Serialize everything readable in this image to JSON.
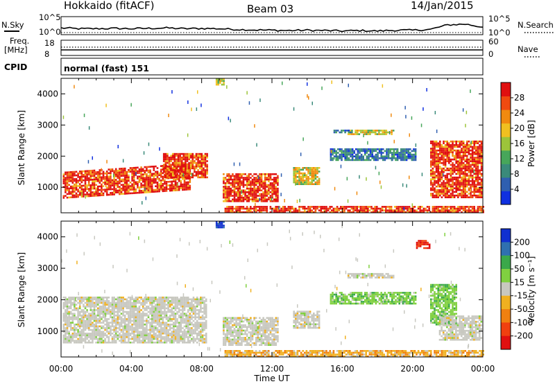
{
  "header": {
    "radar": "Hokkaido (fitACF)",
    "beam": "Beam 03",
    "date": "14/Jan/2015"
  },
  "top_labels": {
    "noise_sky": "N.Sky",
    "noise_search": "N.Search",
    "freq": "Freq.",
    "freq_unit": "[MHz]",
    "nave": "Nave",
    "cpid": "CPID",
    "cpid_value": "normal (fast) 151"
  },
  "chart_data": [
    {
      "type": "line",
      "name_on_figure": "N.Sky",
      "ylim_labels": [
        "10^5",
        "10^0"
      ],
      "right_labels": [
        "10^5",
        "10^0"
      ],
      "series": [
        {
          "name": "N.Sky",
          "style": "solid",
          "x_hours": [
            0,
            1,
            2,
            3,
            4,
            5,
            6,
            7,
            8,
            9,
            10,
            11,
            12,
            13,
            14,
            15,
            16,
            17,
            18,
            19,
            20,
            21,
            22,
            23,
            24
          ],
          "values_fraction_of_panel": [
            0.35,
            0.3,
            0.3,
            0.32,
            0.3,
            0.32,
            0.35,
            0.3,
            0.32,
            0.3,
            0.25,
            0.22,
            0.2,
            0.18,
            0.2,
            0.18,
            0.15,
            0.18,
            0.15,
            0.2,
            0.2,
            0.25,
            0.55,
            0.6,
            0.4
          ]
        },
        {
          "name": "N.Search",
          "style": "dotted",
          "x_hours": [
            0,
            24
          ],
          "values_fraction_of_panel": [
            0.05,
            0.05
          ]
        }
      ]
    },
    {
      "type": "line",
      "name_on_figure": "Freq. [MHz] / Nave",
      "left_ticks": [
        "18",
        "8"
      ],
      "right_ticks": [
        "60",
        "0"
      ],
      "series": [
        {
          "name": "Freq",
          "style": "solid",
          "x_hours": [
            0,
            24
          ],
          "value_mhz": [
            10.4,
            10.4
          ]
        },
        {
          "name": "Nave",
          "style": "dotted",
          "x_hours": [
            0,
            24
          ],
          "value": [
            24,
            24
          ]
        }
      ]
    },
    {
      "type": "heatmap",
      "parameter": "Power",
      "ylabel": "Slant Range [km]",
      "xlabel": "Time UT",
      "xlim_hours": [
        0,
        24
      ],
      "ylim_km": [
        180,
        4500
      ],
      "x_tick_labels": [
        "00:00",
        "04:00",
        "08:00",
        "12:00",
        "16:00",
        "20:00",
        "00:00"
      ],
      "y_tick_values": [
        1000,
        2000,
        3000,
        4000
      ],
      "colorbar": {
        "label": "Power [dB]",
        "ticks": [
          "4",
          "8",
          "12",
          "16",
          "20",
          "24",
          "28"
        ],
        "colors": [
          "#1030e0",
          "#2f5fb0",
          "#3a8a7a",
          "#47a65a",
          "#9cc43a",
          "#f0c020",
          "#f08a10",
          "#f04a10",
          "#e01010"
        ],
        "min": 0,
        "max": 30
      },
      "scatter_regions": [
        {
          "t0": 0.1,
          "t1": 7.3,
          "r0": 650,
          "r1": 1500,
          "power": "high",
          "slope_km_per_h": 95
        },
        {
          "t0": 5.8,
          "t1": 8.3,
          "r0": 1300,
          "r1": 2100,
          "power": "high"
        },
        {
          "t0": 9.2,
          "t1": 12.3,
          "r0": 550,
          "r1": 1450,
          "power": "high"
        },
        {
          "t0": 13.2,
          "t1": 14.7,
          "r0": 1100,
          "r1": 1650,
          "power": "medium"
        },
        {
          "t0": 15.3,
          "t1": 20.2,
          "r0": 1850,
          "r1": 2250,
          "power": "low"
        },
        {
          "t0": 16.3,
          "t1": 18.9,
          "r0": 2700,
          "r1": 2850,
          "power": "medium"
        },
        {
          "t0": 15.5,
          "t1": 16.5,
          "r0": 2750,
          "r1": 2850,
          "power": "low"
        },
        {
          "t0": 21.0,
          "t1": 23.9,
          "r0": 700,
          "r1": 2500,
          "power": "high"
        },
        {
          "t0": 9.3,
          "t1": 24,
          "r0": 200,
          "r1": 400,
          "power": "high"
        },
        {
          "t0": 8.8,
          "t1": 9.3,
          "r0": 4300,
          "r1": 4500,
          "power": "medium"
        }
      ]
    },
    {
      "type": "heatmap",
      "parameter": "Velocity",
      "ylabel": "Slant Range [km]",
      "xlabel": "Time UT",
      "xlim_hours": [
        0,
        24
      ],
      "ylim_km": [
        180,
        4500
      ],
      "x_tick_labels": [
        "00:00",
        "04:00",
        "08:00",
        "12:00",
        "16:00",
        "20:00",
        "00:00"
      ],
      "y_tick_values": [
        1000,
        2000,
        3000,
        4000
      ],
      "colorbar": {
        "label": "Velocity [m s-1]",
        "ticks": [
          "200",
          "100",
          "50",
          "15",
          "-15",
          "-50",
          "-100",
          "-200"
        ],
        "colors": [
          "#1030d0",
          "#2f70b0",
          "#3aa84a",
          "#80d040",
          "#c8c8c0",
          "#f0b020",
          "#f08010",
          "#f04010",
          "#e01010"
        ]
      },
      "scatter_regions": [
        {
          "t0": 0.1,
          "t1": 8.3,
          "r0": 650,
          "r1": 2100,
          "velocity": "ground"
        },
        {
          "t0": 9.2,
          "t1": 12.3,
          "r0": 550,
          "r1": 1450,
          "velocity": "ground"
        },
        {
          "t0": 13.2,
          "t1": 14.7,
          "r0": 1100,
          "r1": 1650,
          "velocity": "ground"
        },
        {
          "t0": 15.3,
          "t1": 20.2,
          "r0": 1850,
          "r1": 2250,
          "velocity": "positive_low"
        },
        {
          "t0": 16.3,
          "t1": 18.9,
          "r0": 2700,
          "r1": 2850,
          "velocity": "ground"
        },
        {
          "t0": 21.0,
          "t1": 22.5,
          "r0": 1200,
          "r1": 2500,
          "velocity": "positive_low"
        },
        {
          "t0": 21.5,
          "t1": 23.9,
          "r0": 700,
          "r1": 1500,
          "velocity": "ground"
        },
        {
          "t0": 9.3,
          "t1": 24,
          "r0": 200,
          "r1": 400,
          "velocity": "negative"
        },
        {
          "t0": 8.8,
          "t1": 9.3,
          "r0": 4300,
          "r1": 4500,
          "velocity": "positive_high"
        },
        {
          "t0": 20.2,
          "t1": 21.0,
          "r0": 3650,
          "r1": 3900,
          "velocity": "negative_high"
        }
      ]
    }
  ]
}
